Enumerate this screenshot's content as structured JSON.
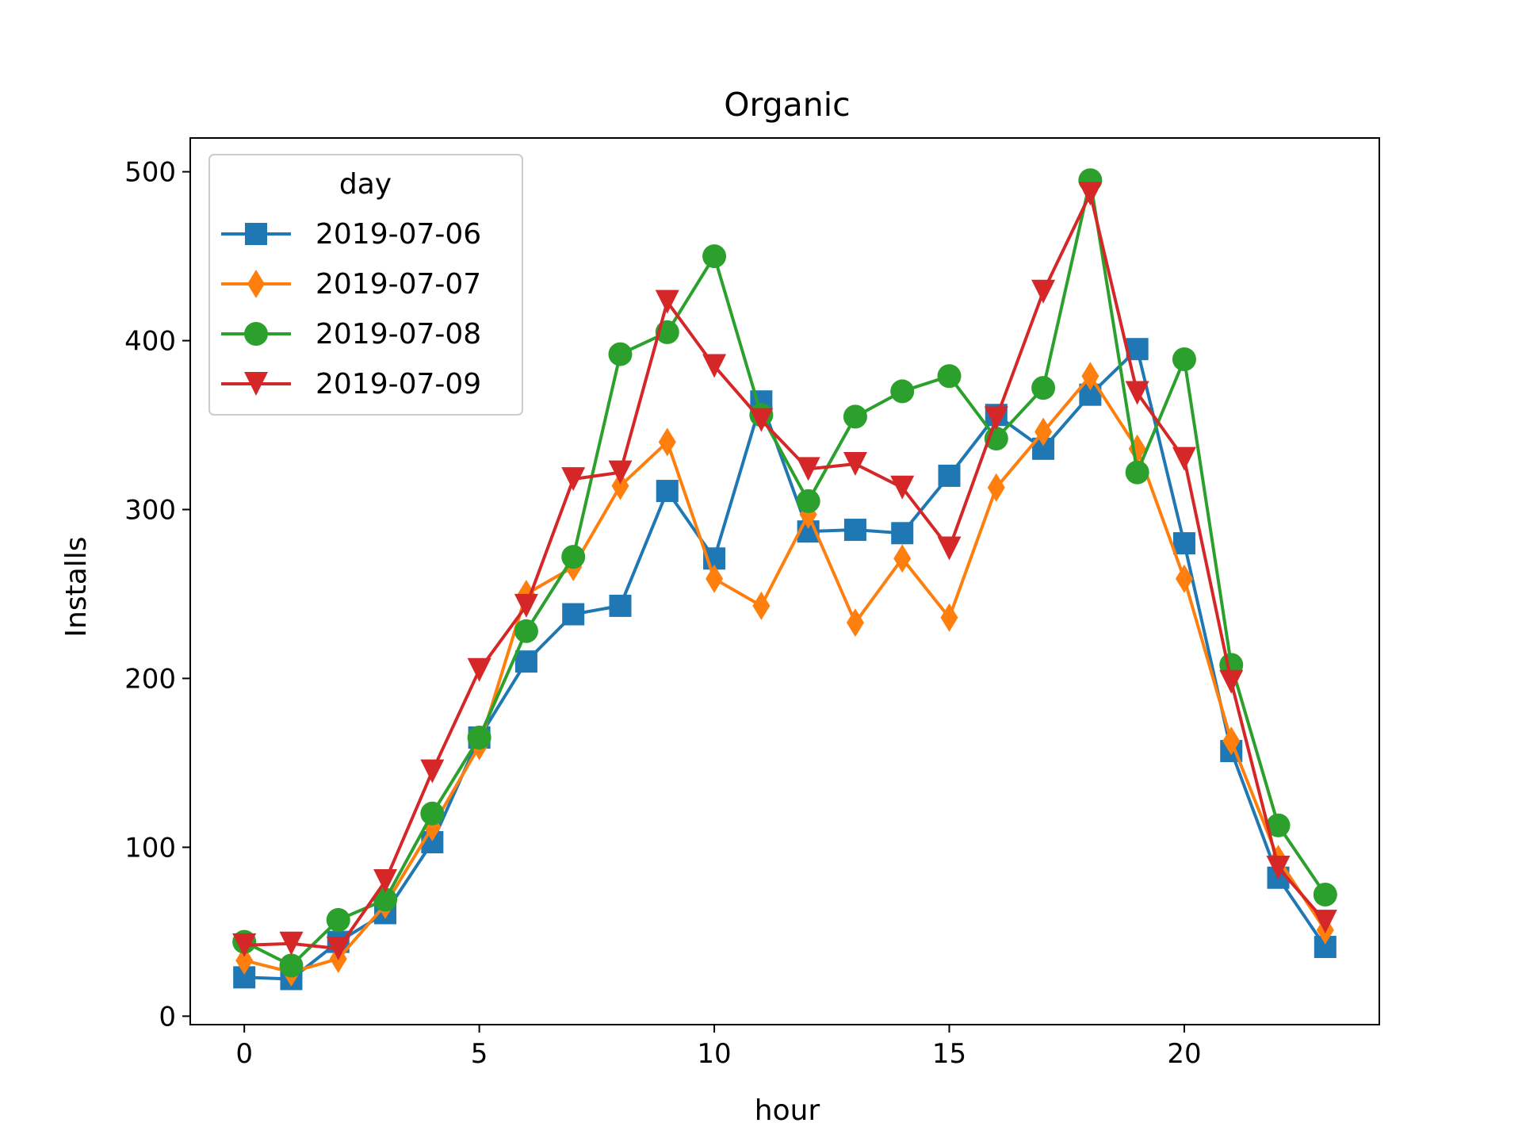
{
  "chart_data": {
    "type": "line",
    "title": "Organic",
    "xlabel": "hour",
    "ylabel": "Installs",
    "xlim": [
      -1.15,
      24.15
    ],
    "ylim": [
      -5,
      520
    ],
    "xticks": [
      0,
      5,
      10,
      15,
      20
    ],
    "yticks": [
      0,
      100,
      200,
      300,
      400,
      500
    ],
    "grid": false,
    "legend": {
      "title": "day",
      "placement": "upper left"
    },
    "x": [
      0,
      1,
      2,
      3,
      4,
      5,
      6,
      7,
      8,
      9,
      10,
      11,
      12,
      13,
      14,
      15,
      16,
      17,
      18,
      19,
      20,
      21,
      22,
      23
    ],
    "series": [
      {
        "name": "2019-07-06",
        "color": "#1f77b4",
        "marker": "square",
        "values": [
          23,
          22,
          44,
          61,
          103,
          165,
          210,
          238,
          243,
          311,
          271,
          364,
          287,
          288,
          286,
          320,
          356,
          336,
          368,
          395,
          280,
          157,
          82,
          41
        ]
      },
      {
        "name": "2019-07-07",
        "color": "#ff7f0e",
        "marker": "thin_diamond",
        "values": [
          33,
          26,
          34,
          66,
          112,
          160,
          250,
          266,
          314,
          340,
          259,
          243,
          297,
          233,
          271,
          236,
          313,
          346,
          379,
          336,
          259,
          163,
          93,
          51
        ]
      },
      {
        "name": "2019-07-08",
        "color": "#2ca02c",
        "marker": "circle",
        "values": [
          44,
          30,
          57,
          69,
          120,
          165,
          228,
          272,
          392,
          405,
          450,
          356,
          305,
          355,
          370,
          379,
          342,
          372,
          495,
          322,
          389,
          208,
          113,
          72
        ]
      },
      {
        "name": "2019-07-09",
        "color": "#d62728",
        "marker": "triangle_down",
        "values": [
          42,
          43,
          40,
          80,
          145,
          205,
          243,
          318,
          322,
          423,
          385,
          353,
          324,
          327,
          313,
          277,
          354,
          429,
          487,
          369,
          330,
          198,
          88,
          56
        ]
      }
    ]
  }
}
